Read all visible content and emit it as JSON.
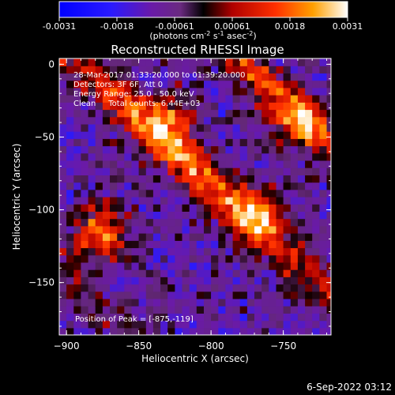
{
  "colorbar": {
    "ticks": [
      "-0.0031",
      "-0.0018",
      "-0.00061",
      "0.00061",
      "0.0018",
      "0.0031"
    ],
    "units_html": "(photons cm⁻² s⁻¹ asec⁻²)",
    "units_parts": [
      "(photons cm",
      "-2",
      " s",
      "-1",
      " asec",
      "-2",
      ")"
    ]
  },
  "chart_data": {
    "type": "heatmap",
    "title": "Reconstructed RHESSI Image",
    "xlabel": "Heliocentric X (arcsec)",
    "ylabel": "Heliocentric Y (arcsec)",
    "xlim": [
      -905,
      -717
    ],
    "ylim": [
      -186,
      4
    ],
    "x_ticks": [
      -900,
      -850,
      -800,
      -750
    ],
    "y_ticks": [
      0,
      -50,
      -100,
      -150
    ],
    "colorbar_range": [
      -0.0031,
      0.0031
    ],
    "annotations": [
      "28-Mar-2017 01:33:20.000 to 01:39:20.000",
      "Detectors: 3F 6F, Att 0",
      "Energy Range: 25.0 - 50.0 keV",
      "Clean     Total counts: 6.44E+03"
    ],
    "peak_label": "Position of Peak = [-875,-119]",
    "peak": [
      -875,
      -119
    ],
    "sources": [
      {
        "x": -878,
        "y": -118,
        "level": 1.0
      },
      {
        "x": -830,
        "y": -40,
        "level": 0.75
      },
      {
        "x": -770,
        "y": -105,
        "level": 0.7
      },
      {
        "x": -745,
        "y": -40,
        "level": 0.65
      }
    ]
  },
  "footer": {
    "date": "6-Sep-2022 03:12"
  }
}
